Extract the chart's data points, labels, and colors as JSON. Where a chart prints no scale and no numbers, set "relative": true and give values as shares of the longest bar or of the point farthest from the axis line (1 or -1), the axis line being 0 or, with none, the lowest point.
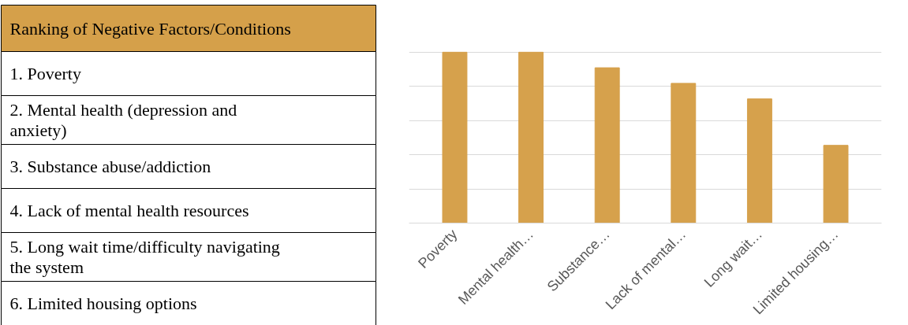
{
  "chart_data": [
    {
      "type": "other",
      "title": "Ranking of Negative Factors/Conditions",
      "color": "#d5a04a",
      "annotations": [
        "1. Poverty",
        "2. Mental health (depression and anxiety)",
        "3. Substance abuse/addiction",
        "4. Lack of mental health resources",
        "5. Long wait time/difficulty navigating the system",
        "6. Limited housing options"
      ]
    },
    {
      "type": "bar",
      "categories": [
        "Poverty",
        "Mental health…",
        "Substance…",
        "Lack of mental…",
        "Long wait…",
        "Limited housing…"
      ],
      "values": [
        1,
        1,
        0.909,
        0.818,
        0.727,
        0.455
      ],
      "color": "#d6a14c",
      "relative": true,
      "grid": "y"
    }
  ]
}
